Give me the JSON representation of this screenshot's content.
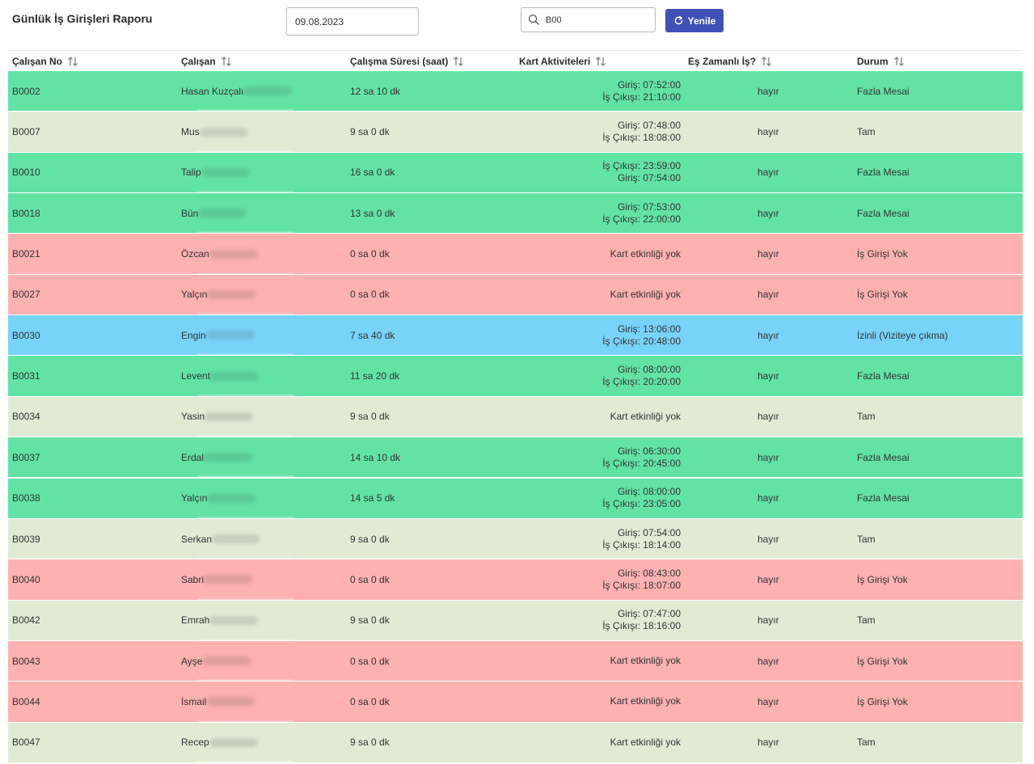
{
  "page": {
    "title": "Günlük İş Girişleri Raporu"
  },
  "filters": {
    "date_value": "09.08.2023",
    "search_value": "B00",
    "refresh_label": "Yenile"
  },
  "colors": {
    "overtime": "#62e3a4",
    "full": "#e1ebd4",
    "absent": "#fdb1b1",
    "leave": "#78d3f8",
    "button": "#3f51b5"
  },
  "table": {
    "columns": [
      "Çalışan No",
      "Çalışan",
      "Çalışma Süresi (saat)",
      "Kart Aktiviteleri",
      "Eş Zamanlı İş?",
      "Durum"
    ],
    "rows": [
      {
        "id": "B0002",
        "name": "Hasan Kuzçalı",
        "duration": "12 sa 10 dk",
        "act1": "Giriş: 07:52:00",
        "act2": "İş Çıkışı: 21:10:00",
        "concurrent": "hayır",
        "status": "Fazla Mesai",
        "kind": "overtime"
      },
      {
        "id": "B0007",
        "name": "Mus",
        "duration": "9 sa 0 dk",
        "act1": "Giriş: 07:48:00",
        "act2": "İş Çıkışı: 18:08:00",
        "concurrent": "hayır",
        "status": "Tam",
        "kind": "full"
      },
      {
        "id": "B0010",
        "name": "Talip",
        "duration": "16 sa 0 dk",
        "act1": "İş Çıkışı: 23:59:00",
        "act2": "Giriş: 07:54:00",
        "concurrent": "hayır",
        "status": "Fazla Mesai",
        "kind": "overtime"
      },
      {
        "id": "B0018",
        "name": "Bün",
        "duration": "13 sa 0 dk",
        "act1": "Giriş: 07:53:00",
        "act2": "İş Çıkışı: 22:00:00",
        "concurrent": "hayır",
        "status": "Fazla Mesai",
        "kind": "overtime"
      },
      {
        "id": "B0021",
        "name": "Özcan",
        "duration": "0 sa 0 dk",
        "act1": "Kart etkinliği yok",
        "act2": "",
        "concurrent": "hayır",
        "status": "İş Girişi Yok",
        "kind": "absent"
      },
      {
        "id": "B0027",
        "name": "Yalçın",
        "duration": "0 sa 0 dk",
        "act1": "Kart etkinliği yok",
        "act2": "",
        "concurrent": "hayır",
        "status": "İş Girişi Yok",
        "kind": "absent"
      },
      {
        "id": "B0030",
        "name": "Engin",
        "duration": "7 sa 40 dk",
        "act1": "Giriş: 13:06:00",
        "act2": "İş Çıkışı: 20:48:00",
        "concurrent": "hayır",
        "status": "İzinli (Viziteye çıkma)",
        "kind": "leave"
      },
      {
        "id": "B0031",
        "name": "Levent",
        "duration": "11 sa 20 dk",
        "act1": "Giriş: 08:00:00",
        "act2": "İş Çıkışı: 20:20:00",
        "concurrent": "hayır",
        "status": "Fazla Mesai",
        "kind": "overtime"
      },
      {
        "id": "B0034",
        "name": "Yasin",
        "duration": "9 sa 0 dk",
        "act1": "Kart etkinliği yok",
        "act2": "",
        "concurrent": "hayır",
        "status": "Tam",
        "kind": "full"
      },
      {
        "id": "B0037",
        "name": "Erdal",
        "duration": "14 sa 10 dk",
        "act1": "Giriş: 06:30:00",
        "act2": "İş Çıkışı: 20:45:00",
        "concurrent": "hayır",
        "status": "Fazla Mesai",
        "kind": "overtime"
      },
      {
        "id": "B0038",
        "name": "Yalçın",
        "duration": "14 sa 5 dk",
        "act1": "Giriş: 08:00:00",
        "act2": "İş Çıkışı: 23:05:00",
        "concurrent": "hayır",
        "status": "Fazla Mesai",
        "kind": "overtime"
      },
      {
        "id": "B0039",
        "name": "Serkan",
        "duration": "9 sa 0 dk",
        "act1": "Giriş: 07:54:00",
        "act2": "İş Çıkışı: 18:14:00",
        "concurrent": "hayır",
        "status": "Tam",
        "kind": "full"
      },
      {
        "id": "B0040",
        "name": "Sabri",
        "duration": "0 sa 0 dk",
        "act1": "Giriş: 08:43:00",
        "act2": "İş Çıkışı: 18:07:00",
        "concurrent": "hayır",
        "status": "İş Girişi Yok",
        "kind": "absent"
      },
      {
        "id": "B0042",
        "name": "Emrah",
        "duration": "9 sa 0 dk",
        "act1": "Giriş: 07:47:00",
        "act2": "İş Çıkışı: 18:16:00",
        "concurrent": "hayır",
        "status": "Tam",
        "kind": "full"
      },
      {
        "id": "B0043",
        "name": "Ayşe",
        "duration": "0 sa 0 dk",
        "act1": "Kart etkinliği yok",
        "act2": "",
        "concurrent": "hayır",
        "status": "İş Girişi Yok",
        "kind": "absent"
      },
      {
        "id": "B0044",
        "name": "İsmail",
        "duration": "0 sa 0 dk",
        "act1": "Kart etkinliği yok",
        "act2": "",
        "concurrent": "hayır",
        "status": "İş Girişi Yok",
        "kind": "absent"
      },
      {
        "id": "B0047",
        "name": "Recep",
        "duration": "9 sa 0 dk",
        "act1": "Kart etkinliği yok",
        "act2": "",
        "concurrent": "hayır",
        "status": "Tam",
        "kind": "full"
      }
    ]
  }
}
